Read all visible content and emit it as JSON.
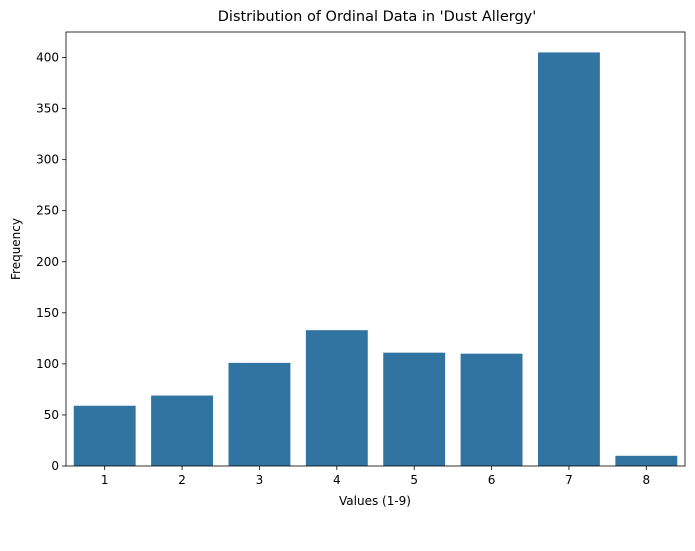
{
  "chart_data": {
    "type": "bar",
    "title": "Distribution of Ordinal Data in 'Dust Allergy'",
    "xlabel": "Values (1-9)",
    "ylabel": "Frequency",
    "categories": [
      "1",
      "2",
      "3",
      "4",
      "5",
      "6",
      "7",
      "8"
    ],
    "values": [
      59,
      69,
      101,
      133,
      111,
      110,
      405,
      10
    ],
    "ylim": [
      0,
      425
    ],
    "yticks": [
      0,
      50,
      100,
      150,
      200,
      250,
      300,
      350,
      400
    ],
    "grid": false,
    "legend": false,
    "bar_color": "#3274a1"
  }
}
